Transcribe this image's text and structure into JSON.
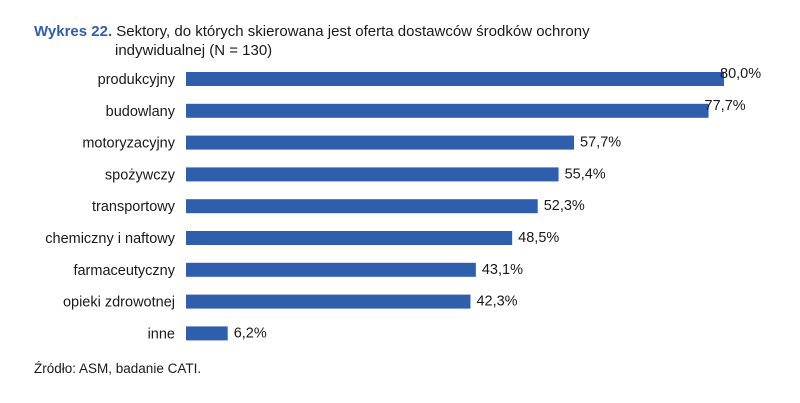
{
  "figure": {
    "label": "Wykres 22.",
    "title_line1": "Sektory, do których skierowana jest oferta dostawców środków ochrony",
    "title_line2": "indywidualnej (N = 130)",
    "source": "Źródło: ASM, badanie CATI."
  },
  "chart_data": {
    "type": "bar",
    "orientation": "horizontal",
    "title": "Sektory, do których skierowana jest oferta dostawców środków ochrony indywidualnej (N = 130)",
    "categories": [
      "produkcyjny",
      "budowlany",
      "motoryzacyjny",
      "spożywczy",
      "transportowy",
      "chemiczny i naftowy",
      "farmaceutyczny",
      "opieki zdrowotnej",
      "inne"
    ],
    "values": [
      80.0,
      77.7,
      57.7,
      55.4,
      52.3,
      48.5,
      43.1,
      42.3,
      6.2
    ],
    "value_labels": [
      "80,0%",
      "77,7%",
      "57,7%",
      "55,4%",
      "52,3%",
      "48,5%",
      "43,1%",
      "42,3%",
      "6,2%"
    ],
    "unit": "%",
    "xlim": [
      0,
      80
    ],
    "grid": false,
    "legend": "none",
    "bar_color": "#2f5fac"
  }
}
